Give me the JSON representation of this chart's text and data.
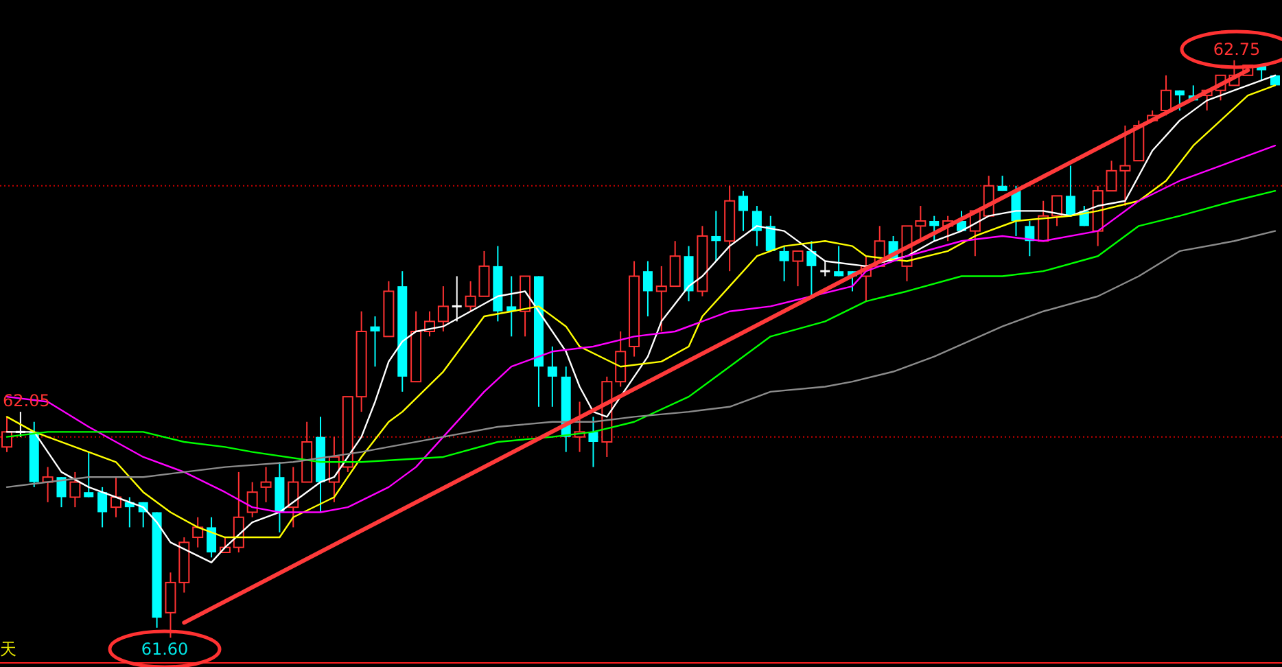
{
  "chart_data": {
    "type": "candlestick",
    "categories": [
      null,
      null,
      null,
      null,
      null,
      null,
      null,
      null,
      null,
      null,
      null,
      null,
      null,
      null,
      null,
      null,
      null,
      null,
      null,
      null,
      null,
      null,
      null,
      null,
      null,
      null,
      null,
      null,
      null,
      null,
      null,
      null,
      null,
      null,
      null,
      null,
      null,
      null,
      null,
      null,
      null,
      null,
      null,
      null,
      null,
      null,
      null,
      null,
      null,
      null,
      null,
      null,
      null,
      null,
      null,
      null,
      null,
      null,
      null,
      null,
      null,
      null,
      null,
      null,
      null,
      null,
      null,
      null,
      null,
      null,
      null,
      null,
      null,
      null,
      null,
      null,
      null,
      null,
      null,
      null,
      null,
      null,
      null,
      null,
      null,
      null,
      null,
      null,
      null,
      null,
      null,
      null,
      null,
      null
    ],
    "ylim": [
      61.55,
      62.87
    ],
    "ohlc": [
      [
        61.98,
        62.04,
        61.97,
        62.01
      ],
      [
        62.01,
        62.05,
        62.0,
        62.01
      ],
      [
        62.01,
        62.03,
        61.9,
        61.91
      ],
      [
        61.91,
        61.94,
        61.87,
        61.92
      ],
      [
        61.92,
        61.92,
        61.86,
        61.88
      ],
      [
        61.88,
        61.93,
        61.86,
        61.91
      ],
      [
        61.89,
        61.97,
        61.88,
        61.88
      ],
      [
        61.89,
        61.9,
        61.82,
        61.85
      ],
      [
        61.86,
        61.92,
        61.84,
        61.88
      ],
      [
        61.87,
        61.88,
        61.82,
        61.86
      ],
      [
        61.87,
        61.87,
        61.82,
        61.85
      ],
      [
        61.85,
        61.85,
        61.62,
        61.64
      ],
      [
        61.65,
        61.73,
        61.6,
        61.71
      ],
      [
        61.71,
        61.8,
        61.69,
        61.79
      ],
      [
        61.8,
        61.84,
        61.78,
        61.82
      ],
      [
        61.82,
        61.84,
        61.76,
        61.77
      ],
      [
        61.77,
        61.8,
        61.77,
        61.78
      ],
      [
        61.78,
        61.93,
        61.77,
        61.84
      ],
      [
        61.85,
        61.91,
        61.84,
        61.89
      ],
      [
        61.9,
        61.94,
        61.87,
        61.91
      ],
      [
        61.92,
        61.95,
        61.81,
        61.85
      ],
      [
        61.86,
        61.94,
        61.82,
        61.91
      ],
      [
        61.91,
        62.03,
        61.91,
        61.99
      ],
      [
        62.0,
        62.04,
        61.85,
        61.91
      ],
      [
        61.91,
        62.0,
        61.87,
        61.96
      ],
      [
        61.94,
        62.08,
        61.93,
        62.08
      ],
      [
        62.08,
        62.25,
        62.05,
        62.21
      ],
      [
        62.22,
        62.24,
        62.14,
        62.21
      ],
      [
        62.2,
        62.31,
        62.2,
        62.29
      ],
      [
        62.3,
        62.33,
        62.09,
        62.12
      ],
      [
        62.11,
        62.25,
        62.11,
        62.21
      ],
      [
        62.21,
        62.25,
        62.2,
        62.23
      ],
      [
        62.23,
        62.3,
        62.21,
        62.26
      ],
      [
        62.26,
        62.32,
        62.23,
        62.26
      ],
      [
        62.26,
        62.31,
        62.25,
        62.28
      ],
      [
        62.28,
        62.37,
        62.28,
        62.34
      ],
      [
        62.34,
        62.38,
        62.23,
        62.25
      ],
      [
        62.26,
        62.32,
        62.2,
        62.25
      ],
      [
        62.25,
        62.32,
        62.2,
        62.32
      ],
      [
        62.32,
        62.32,
        62.06,
        62.14
      ],
      [
        62.14,
        62.18,
        62.06,
        62.12
      ],
      [
        62.12,
        62.14,
        61.97,
        62.0
      ],
      [
        62.0,
        62.07,
        61.97,
        62.01
      ],
      [
        62.01,
        62.04,
        61.94,
        61.99
      ],
      [
        61.99,
        62.12,
        61.96,
        62.11
      ],
      [
        62.11,
        62.21,
        62.1,
        62.17
      ],
      [
        62.18,
        62.35,
        62.16,
        62.32
      ],
      [
        62.33,
        62.35,
        62.24,
        62.29
      ],
      [
        62.29,
        62.34,
        62.21,
        62.3
      ],
      [
        62.3,
        62.39,
        62.3,
        62.36
      ],
      [
        62.36,
        62.38,
        62.27,
        62.29
      ],
      [
        62.29,
        62.42,
        62.28,
        62.4
      ],
      [
        62.4,
        62.45,
        62.35,
        62.39
      ],
      [
        62.39,
        62.5,
        62.33,
        62.47
      ],
      [
        62.48,
        62.49,
        62.41,
        62.45
      ],
      [
        62.45,
        62.46,
        62.38,
        62.41
      ],
      [
        62.42,
        62.44,
        62.37,
        62.37
      ],
      [
        62.37,
        62.38,
        62.31,
        62.35
      ],
      [
        62.35,
        62.37,
        62.3,
        62.37
      ],
      [
        62.37,
        62.39,
        62.28,
        62.34
      ],
      [
        62.33,
        62.35,
        62.32,
        62.33
      ],
      [
        62.33,
        62.38,
        62.32,
        62.32
      ],
      [
        62.33,
        62.33,
        62.29,
        62.32
      ],
      [
        62.32,
        62.36,
        62.27,
        62.34
      ],
      [
        62.34,
        62.42,
        62.34,
        62.39
      ],
      [
        62.39,
        62.4,
        62.35,
        62.35
      ],
      [
        62.34,
        62.42,
        62.31,
        62.42
      ],
      [
        62.42,
        62.46,
        62.39,
        62.43
      ],
      [
        62.43,
        62.44,
        62.39,
        62.42
      ],
      [
        62.42,
        62.44,
        62.39,
        62.43
      ],
      [
        62.43,
        62.45,
        62.41,
        62.41
      ],
      [
        62.41,
        62.45,
        62.36,
        62.45
      ],
      [
        62.44,
        62.52,
        62.44,
        62.5
      ],
      [
        62.5,
        62.52,
        62.49,
        62.49
      ],
      [
        62.49,
        62.5,
        62.4,
        62.43
      ],
      [
        62.42,
        62.43,
        62.36,
        62.39
      ],
      [
        62.39,
        62.47,
        62.39,
        62.44
      ],
      [
        62.44,
        62.48,
        62.42,
        62.48
      ],
      [
        62.48,
        62.54,
        62.44,
        62.44
      ],
      [
        62.45,
        62.46,
        62.42,
        62.42
      ],
      [
        62.41,
        62.5,
        62.38,
        62.49
      ],
      [
        62.49,
        62.55,
        62.49,
        62.53
      ],
      [
        62.53,
        62.62,
        62.46,
        62.54
      ],
      [
        62.55,
        62.63,
        62.55,
        62.62
      ],
      [
        62.63,
        62.65,
        62.63,
        62.64
      ],
      [
        62.65,
        62.72,
        62.64,
        62.69
      ],
      [
        62.69,
        62.69,
        62.65,
        62.68
      ],
      [
        62.68,
        62.7,
        62.67,
        62.67
      ],
      [
        62.68,
        62.69,
        62.65,
        62.69
      ],
      [
        62.69,
        62.72,
        62.67,
        62.72
      ],
      [
        62.7,
        62.75,
        62.7,
        62.72
      ],
      [
        62.72,
        62.74,
        62.72,
        62.74
      ],
      [
        62.74,
        62.74,
        62.71,
        62.73
      ],
      [
        62.72,
        62.72,
        62.7,
        62.7
      ]
    ],
    "colors": [
      "#ff3232",
      "#ffffff",
      "#00ffff",
      "#ff3232",
      "#00ffff",
      "#ff3232",
      "#00ffff",
      "#00ffff",
      "#ff3232",
      "#00ffff",
      "#00ffff",
      "#00ffff",
      "#ff3232",
      "#ff3232",
      "#ff3232",
      "#00ffff",
      "#ff3232",
      "#ff3232",
      "#ff3232",
      "#ff3232",
      "#00ffff",
      "#ff3232",
      "#ff3232",
      "#00ffff",
      "#ff3232",
      "#ff3232",
      "#ff3232",
      "#00ffff",
      "#ff3232",
      "#00ffff",
      "#ff3232",
      "#ff3232",
      "#ff3232",
      "#ffffff",
      "#ff3232",
      "#ff3232",
      "#00ffff",
      "#00ffff",
      "#ff3232",
      "#00ffff",
      "#00ffff",
      "#00ffff",
      "#ff3232",
      "#00ffff",
      "#ff3232",
      "#ff3232",
      "#ff3232",
      "#00ffff",
      "#ff3232",
      "#ff3232",
      "#00ffff",
      "#ff3232",
      "#00ffff",
      "#ff3232",
      "#00ffff",
      "#00ffff",
      "#00ffff",
      "#00ffff",
      "#ff3232",
      "#00ffff",
      "#ffffff",
      "#00ffff",
      "#00ffff",
      "#ff3232",
      "#ff3232",
      "#00ffff",
      "#ff3232",
      "#ff3232",
      "#00ffff",
      "#ff3232",
      "#00ffff",
      "#ff3232",
      "#ff3232",
      "#00ffff",
      "#00ffff",
      "#00ffff",
      "#ff3232",
      "#ff3232",
      "#00ffff",
      "#00ffff",
      "#ff3232",
      "#ff3232",
      "#ff3232",
      "#ff3232",
      "#ff3232",
      "#ff3232",
      "#00ffff",
      "#00ffff",
      "#ff3232",
      "#ff3232",
      "#ff3232",
      "#ff3232",
      "#00ffff",
      "#00ffff"
    ],
    "series": [
      {
        "type": "line",
        "color": "#ffffff",
        "values": [
          62.01,
          null,
          62.01,
          null,
          61.93,
          null,
          61.9,
          null,
          61.88,
          null,
          61.86,
          61.83,
          61.79,
          null,
          null,
          61.75,
          61.78,
          null,
          61.83,
          null,
          61.85,
          61.87,
          null,
          61.91,
          61.92,
          61.96,
          62.0,
          62.07,
          62.15,
          62.19,
          62.21,
          null,
          62.22,
          null,
          62.25,
          null,
          62.28,
          null,
          62.29,
          62.25,
          null,
          62.17,
          62.1,
          62.05,
          62.04,
          62.08,
          null,
          62.16,
          62.23,
          null,
          62.3,
          62.32,
          null,
          62.38,
          62.4,
          62.42,
          null,
          62.41,
          null,
          62.37,
          62.35,
          null,
          null,
          62.34,
          null,
          null,
          62.36,
          null,
          62.39,
          null,
          62.41,
          null,
          62.44,
          null,
          62.45,
          null,
          62.45,
          null,
          62.44,
          null,
          62.46,
          null,
          62.47,
          null,
          62.57,
          null,
          62.63,
          null,
          62.67,
          null,
          62.69,
          null,
          62.71,
          62.72
        ]
      },
      {
        "type": "line",
        "color": "#ffff00",
        "values": [
          62.04,
          null,
          62.01,
          null,
          null,
          61.98,
          null,
          null,
          61.95,
          null,
          61.89,
          null,
          61.85,
          null,
          61.82,
          null,
          61.8,
          61.8,
          null,
          null,
          61.8,
          61.84,
          null,
          null,
          61.88,
          null,
          61.96,
          null,
          62.03,
          62.05,
          null,
          null,
          62.13,
          null,
          null,
          62.24,
          null,
          62.25,
          null,
          62.26,
          null,
          62.22,
          62.18,
          null,
          null,
          62.14,
          null,
          null,
          62.15,
          null,
          62.18,
          62.24,
          null,
          62.3,
          null,
          62.36,
          null,
          62.38,
          null,
          null,
          62.39,
          null,
          62.38,
          62.36,
          null,
          null,
          62.35,
          null,
          null,
          62.37,
          null,
          62.4,
          null,
          null,
          62.43,
          null,
          null,
          null,
          62.44,
          null,
          62.45,
          null,
          null,
          62.47,
          null,
          62.51,
          null,
          62.58,
          null,
          62.63,
          null,
          62.68,
          null,
          62.7
        ]
      },
      {
        "type": "line",
        "color": "#ff00ff",
        "values": [
          62.08,
          null,
          null,
          62.07,
          null,
          null,
          62.02,
          null,
          null,
          null,
          61.96,
          null,
          null,
          61.93,
          null,
          null,
          61.89,
          null,
          61.86,
          null,
          61.85,
          null,
          null,
          61.85,
          null,
          61.86,
          null,
          null,
          61.9,
          null,
          61.94,
          null,
          62.0,
          null,
          null,
          62.09,
          null,
          62.14,
          null,
          null,
          62.17,
          null,
          null,
          62.18,
          null,
          null,
          62.2,
          null,
          null,
          62.21,
          null,
          null,
          null,
          62.25,
          null,
          null,
          62.26,
          null,
          null,
          62.28,
          null,
          null,
          62.3,
          62.33,
          null,
          null,
          62.36,
          null,
          null,
          null,
          62.39,
          null,
          null,
          62.4,
          null,
          null,
          62.39,
          null,
          null,
          null,
          62.41,
          null,
          null,
          62.47,
          null,
          null,
          62.51,
          null,
          null,
          null,
          62.55,
          null,
          null,
          62.58
        ]
      },
      {
        "type": "line",
        "color": "#00ff00",
        "values": [
          62.0,
          null,
          null,
          62.01,
          null,
          null,
          62.01,
          null,
          null,
          null,
          62.01,
          null,
          null,
          61.99,
          null,
          null,
          61.98,
          null,
          61.97,
          null,
          null,
          null,
          null,
          61.95,
          null,
          null,
          61.95,
          null,
          null,
          null,
          null,
          null,
          61.96,
          null,
          null,
          null,
          61.99,
          null,
          null,
          null,
          62.0,
          null,
          null,
          62.01,
          null,
          null,
          62.03,
          null,
          null,
          null,
          62.08,
          null,
          null,
          62.14,
          null,
          null,
          62.2,
          null,
          null,
          null,
          62.23,
          null,
          null,
          62.27,
          null,
          null,
          62.29,
          null,
          null,
          null,
          62.32,
          null,
          null,
          62.32,
          null,
          null,
          62.33,
          null,
          null,
          null,
          62.36,
          null,
          null,
          62.42,
          null,
          null,
          62.44,
          null,
          null,
          null,
          62.47,
          null,
          null,
          62.49
        ]
      },
      {
        "type": "line",
        "color": "#8c8c8c",
        "values": [
          61.9,
          null,
          null,
          61.91,
          null,
          null,
          61.92,
          null,
          null,
          null,
          61.92,
          null,
          null,
          61.93,
          null,
          null,
          61.94,
          null,
          null,
          null,
          null,
          61.95,
          null,
          null,
          null,
          null,
          61.97,
          null,
          null,
          null,
          null,
          null,
          62.0,
          null,
          null,
          null,
          62.02,
          null,
          null,
          null,
          62.03,
          null,
          null,
          62.03,
          null,
          null,
          62.04,
          null,
          null,
          null,
          62.05,
          null,
          null,
          62.06,
          null,
          null,
          62.09,
          null,
          null,
          null,
          62.1,
          null,
          62.11,
          null,
          null,
          62.13,
          null,
          null,
          62.16,
          null,
          null,
          null,
          null,
          62.22,
          null,
          null,
          62.25,
          null,
          null,
          null,
          62.28,
          null,
          null,
          62.32,
          null,
          null,
          62.37,
          null,
          null,
          null,
          62.39,
          null,
          null,
          62.41
        ]
      },
      {
        "type": "line",
        "color": "#ff3a3a",
        "values": [
          null,
          null,
          null,
          null,
          null,
          null,
          null,
          null,
          null,
          null,
          null,
          null,
          null,
          61.63,
          null,
          null,
          null,
          null,
          null,
          null,
          null,
          null,
          null,
          null,
          null,
          null,
          null,
          null,
          null,
          null,
          null,
          null,
          null,
          null,
          null,
          null,
          null,
          null,
          null,
          null,
          null,
          null,
          null,
          null,
          null,
          null,
          null,
          null,
          null,
          null,
          null,
          null,
          null,
          null,
          null,
          null,
          null,
          null,
          null,
          null,
          null,
          null,
          null,
          null,
          null,
          null,
          null,
          null,
          null,
          null,
          null,
          null,
          null,
          null,
          null,
          null,
          null,
          null,
          null,
          null,
          null,
          null,
          null,
          null,
          null,
          null,
          null,
          null,
          null,
          null,
          null,
          62.73,
          null,
          null
        ]
      }
    ],
    "ref_lines": [
      {
        "axis": "y",
        "value": 62.0,
        "color": "#c80000",
        "line_style": "dotted"
      },
      {
        "axis": "y",
        "value": 62.5,
        "color": "#c80000",
        "line_style": "dotted"
      },
      {
        "axis": "y",
        "value": 61.55,
        "color": "#ff2020",
        "line_style": "solid"
      }
    ],
    "annotations": [
      "62.75",
      "61.60",
      "62.05",
      "天"
    ],
    "grid": false
  }
}
